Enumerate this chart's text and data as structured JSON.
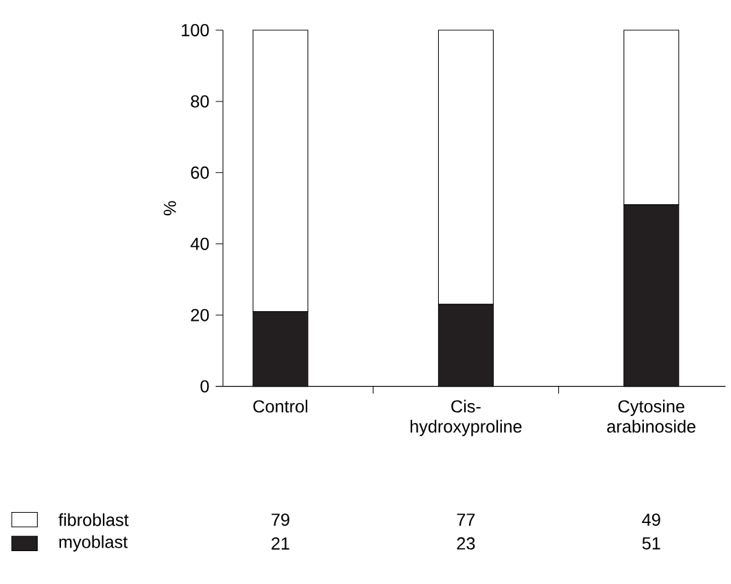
{
  "chart_data": {
    "type": "bar",
    "stacked": true,
    "ylabel": "%",
    "categories": [
      "Control",
      "Cis-hydroxyproline",
      "Cytosine arabinoside"
    ],
    "series": [
      {
        "name": "myoblast",
        "color": "#231f20",
        "values": [
          21,
          23,
          51
        ]
      },
      {
        "name": "fibroblast",
        "color": "#ffffff",
        "values": [
          79,
          77,
          49
        ]
      }
    ],
    "ylim": [
      0,
      100
    ],
    "yticks": [
      0,
      20,
      40,
      60,
      80,
      100
    ],
    "data_labels": true,
    "legend": "bottom"
  }
}
